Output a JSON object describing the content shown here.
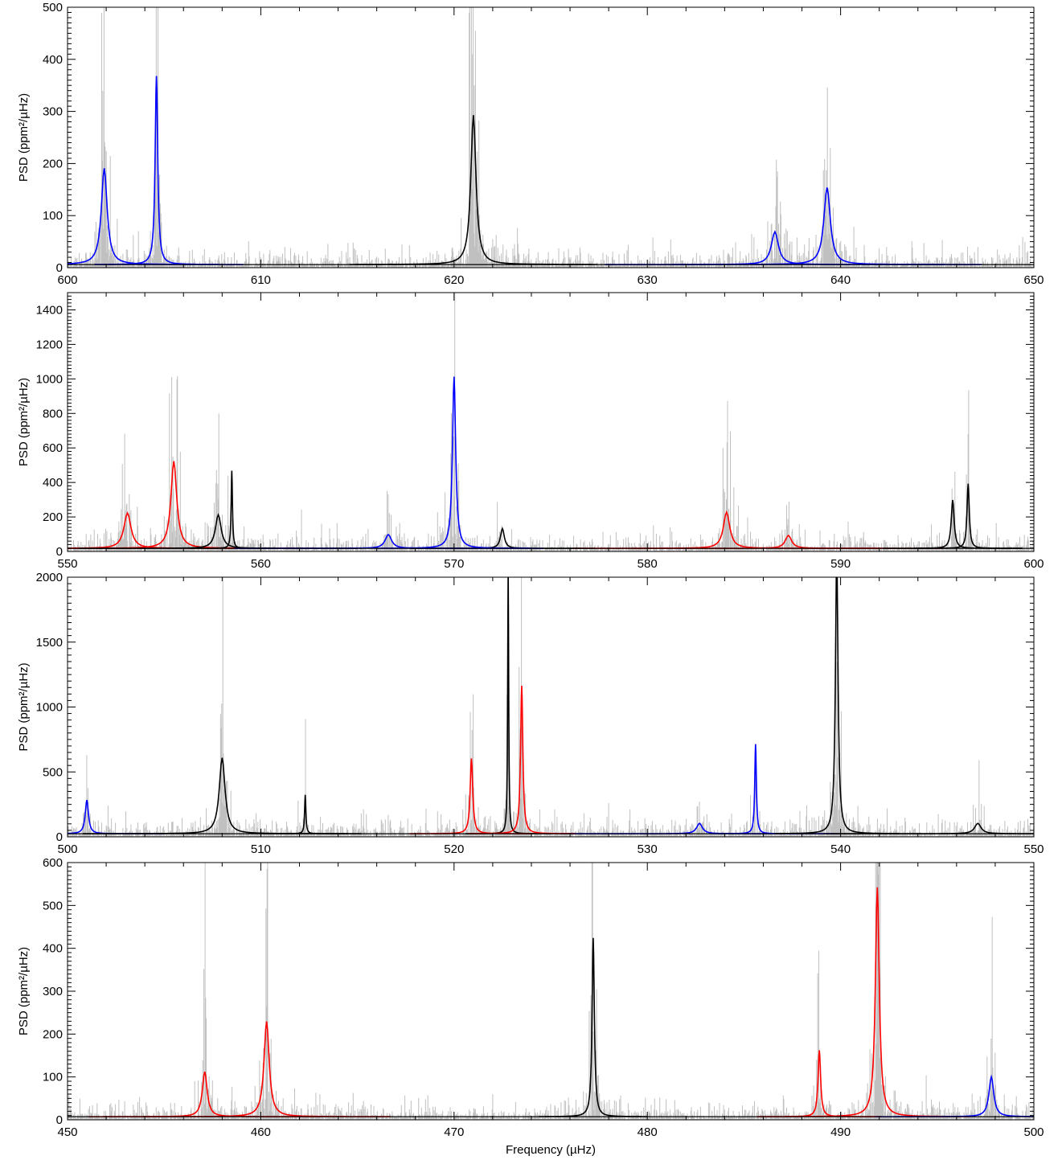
{
  "chart_data": [
    {
      "type": "line",
      "xlim": [
        600,
        650
      ],
      "ylim": [
        0,
        500
      ],
      "xticks": [
        600,
        610,
        620,
        630,
        640,
        650
      ],
      "yticks": [
        0,
        100,
        200,
        300,
        400,
        500
      ],
      "ylabel": "PSD (ppm²/µHz)",
      "xlabel": "",
      "grid": false,
      "series": [
        {
          "color": "#0000ff",
          "peaks": [
            {
              "x": 601.9,
              "y": 185,
              "w": 0.18
            },
            {
              "x": 604.6,
              "y": 362,
              "w": 0.08
            },
            {
              "x": 636.6,
              "y": 63,
              "w": 0.22
            },
            {
              "x": 639.3,
              "y": 148,
              "w": 0.2
            }
          ]
        },
        {
          "color": "#000000",
          "peaks": [
            {
              "x": 621.0,
              "y": 287,
              "w": 0.16
            }
          ]
        }
      ]
    },
    {
      "type": "line",
      "xlim": [
        550,
        600
      ],
      "ylim": [
        0,
        1500
      ],
      "xticks": [
        550,
        560,
        570,
        580,
        590,
        600
      ],
      "yticks": [
        0,
        200,
        400,
        600,
        800,
        1000,
        1200,
        1400
      ],
      "ylabel": "PSD (ppm²/µHz)",
      "xlabel": "",
      "grid": false,
      "series": [
        {
          "color": "#ff0000",
          "peaks": [
            {
              "x": 553.1,
              "y": 205,
              "w": 0.22
            },
            {
              "x": 555.5,
              "y": 505,
              "w": 0.18
            },
            {
              "x": 584.1,
              "y": 210,
              "w": 0.2
            },
            {
              "x": 587.3,
              "y": 75,
              "w": 0.2
            }
          ]
        },
        {
          "color": "#000000",
          "peaks": [
            {
              "x": 557.8,
              "y": 195,
              "w": 0.18
            },
            {
              "x": 558.5,
              "y": 450,
              "w": 0.04
            },
            {
              "x": 572.5,
              "y": 115,
              "w": 0.12
            },
            {
              "x": 595.8,
              "y": 280,
              "w": 0.09
            },
            {
              "x": 596.6,
              "y": 375,
              "w": 0.07
            }
          ]
        },
        {
          "color": "#0000ff",
          "peaks": [
            {
              "x": 566.6,
              "y": 80,
              "w": 0.2
            },
            {
              "x": 570.0,
              "y": 995,
              "w": 0.1
            }
          ]
        }
      ]
    },
    {
      "type": "line",
      "xlim": [
        500,
        550
      ],
      "ylim": [
        0,
        2000
      ],
      "xticks": [
        500,
        510,
        520,
        530,
        540,
        550
      ],
      "yticks": [
        0,
        500,
        1000,
        1500,
        2000
      ],
      "ylabel": "PSD (ppm²/µHz)",
      "xlabel": "",
      "grid": false,
      "series": [
        {
          "color": "#0000ff",
          "peaks": [
            {
              "x": 501.0,
              "y": 260,
              "w": 0.1
            },
            {
              "x": 532.7,
              "y": 80,
              "w": 0.18
            },
            {
              "x": 535.6,
              "y": 690,
              "w": 0.05
            }
          ]
        },
        {
          "color": "#000000",
          "peaks": [
            {
              "x": 508.0,
              "y": 585,
              "w": 0.18
            },
            {
              "x": 512.3,
              "y": 300,
              "w": 0.04
            },
            {
              "x": 522.8,
              "y": 2080,
              "w": 0.03
            },
            {
              "x": 539.8,
              "y": 2150,
              "w": 0.08
            },
            {
              "x": 547.1,
              "y": 80,
              "w": 0.2
            }
          ]
        },
        {
          "color": "#ff0000",
          "peaks": [
            {
              "x": 520.9,
              "y": 580,
              "w": 0.08
            },
            {
              "x": 523.5,
              "y": 1140,
              "w": 0.07
            }
          ]
        }
      ]
    },
    {
      "type": "line",
      "xlim": [
        450,
        500
      ],
      "ylim": [
        0,
        600
      ],
      "xticks": [
        450,
        460,
        470,
        480,
        490,
        500
      ],
      "yticks": [
        0,
        100,
        200,
        300,
        400,
        500,
        600
      ],
      "ylabel": "PSD (ppm²/µHz)",
      "xlabel": "Frequency (µHz)",
      "grid": false,
      "series": [
        {
          "color": "#ff0000",
          "peaks": [
            {
              "x": 457.1,
              "y": 105,
              "w": 0.15
            },
            {
              "x": 460.3,
              "y": 222,
              "w": 0.16
            },
            {
              "x": 488.9,
              "y": 155,
              "w": 0.08
            },
            {
              "x": 491.9,
              "y": 535,
              "w": 0.12
            }
          ]
        },
        {
          "color": "#000000",
          "peaks": [
            {
              "x": 477.2,
              "y": 417,
              "w": 0.07
            }
          ]
        },
        {
          "color": "#0000ff",
          "peaks": [
            {
              "x": 497.8,
              "y": 93,
              "w": 0.15
            }
          ]
        }
      ]
    }
  ]
}
